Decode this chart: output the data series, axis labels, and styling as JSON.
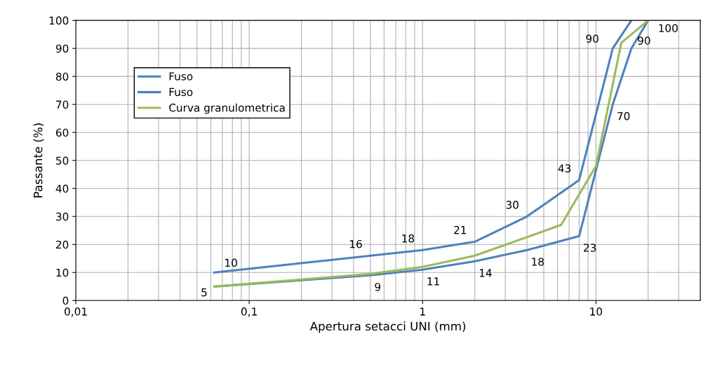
{
  "chart_data": {
    "type": "line",
    "xlabel": "Apertura setacci UNI (mm)",
    "ylabel": "Passante (%)",
    "log": "x",
    "xlim": [
      0.01,
      40
    ],
    "xticks": [
      {
        "value": 0.01,
        "label": "0,01"
      },
      {
        "value": 0.1,
        "label": "0,1"
      },
      1,
      10
    ],
    "ylim": [
      0,
      100
    ],
    "yticks": [
      0,
      10,
      20,
      30,
      40,
      50,
      60,
      70,
      80,
      90,
      100
    ],
    "grid": true,
    "legend": "top left",
    "marker": "none",
    "line_style": "solid",
    "series": [
      {
        "name": "Fuso",
        "color": "#4f81bd",
        "x": [
          0.063,
          0.5,
          1,
          2,
          4,
          8,
          12.5,
          16
        ],
        "values": [
          10,
          16,
          18,
          21,
          30,
          43,
          90,
          100
        ],
        "value_labels": [
          "10",
          "16",
          "18",
          "21",
          "30",
          "43",
          "90",
          null
        ]
      },
      {
        "name": "Fuso",
        "color": "#4f81bd",
        "x": [
          0.063,
          0.5,
          1,
          2,
          4,
          8,
          12.5,
          16,
          20
        ],
        "values": [
          5,
          9,
          11,
          14,
          18,
          23,
          70,
          90,
          100
        ],
        "value_labels": [
          "5",
          "9",
          "11",
          "14",
          "18",
          "23",
          "70",
          "90",
          "100"
        ]
      },
      {
        "name": "Curva granulometrica",
        "color": "#9bbb59",
        "x": [
          0.063,
          0.5,
          1,
          2,
          6.3,
          10,
          14,
          20
        ],
        "values": [
          5,
          9.5,
          12,
          16,
          27,
          48,
          92,
          100
        ]
      }
    ]
  }
}
